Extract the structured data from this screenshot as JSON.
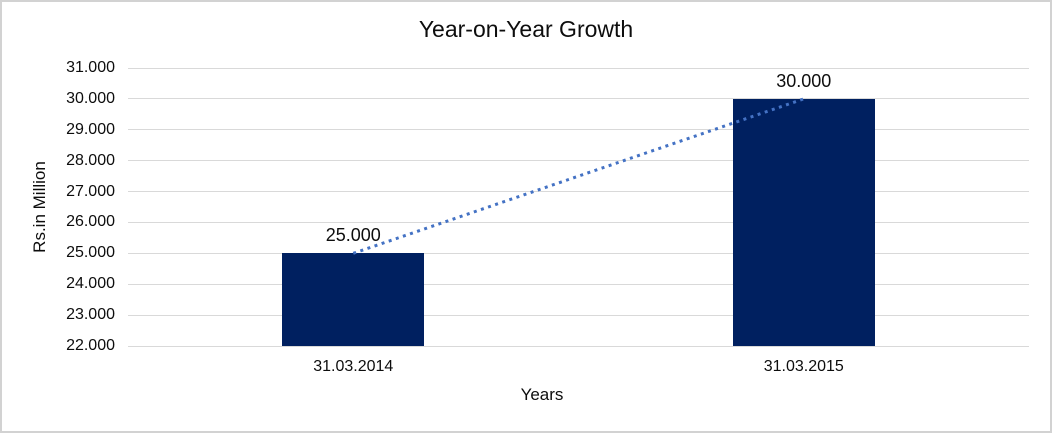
{
  "chart_data": {
    "type": "bar",
    "title": "Year-on-Year Growth",
    "xlabel": "Years",
    "ylabel": "Rs.in Million",
    "categories": [
      "31.03.2014",
      "31.03.2015"
    ],
    "values": [
      25000,
      30000
    ],
    "data_labels": [
      "25.000",
      "30.000"
    ],
    "y_ticks": [
      {
        "value": 31000,
        "label": "31.000"
      },
      {
        "value": 30000,
        "label": "30.000"
      },
      {
        "value": 29000,
        "label": "29.000"
      },
      {
        "value": 28000,
        "label": "28.000"
      },
      {
        "value": 27000,
        "label": "27.000"
      },
      {
        "value": 26000,
        "label": "26.000"
      },
      {
        "value": 25000,
        "label": "25.000"
      },
      {
        "value": 24000,
        "label": "24.000"
      },
      {
        "value": 23000,
        "label": "23.000"
      },
      {
        "value": 22000,
        "label": "22.000"
      }
    ],
    "ylim": [
      22000,
      31000
    ],
    "grid": true,
    "legend": "none",
    "trendline": {
      "style": "dotted",
      "from_value": 25000,
      "to_value": 30000
    },
    "colors": {
      "bar": "#002060",
      "trendline": "#4472C4",
      "gridline": "#D9D9D9",
      "text": "#0D0D0D",
      "background": "#FFFFFF",
      "border": "#D2D2D2"
    }
  }
}
